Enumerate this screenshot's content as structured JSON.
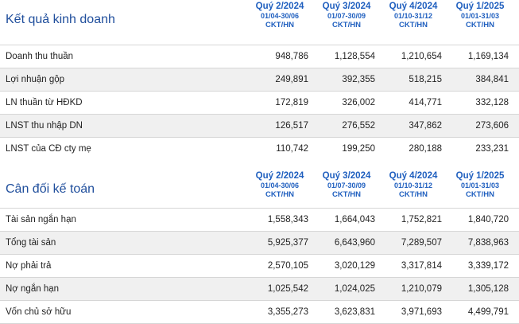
{
  "income": {
    "title": "Kết quả kinh doanh",
    "quarters": [
      {
        "label": "Quý 2/2024",
        "range": "01/04-30/06",
        "unit": "CKT/HN"
      },
      {
        "label": "Quý 3/2024",
        "range": "01/07-30/09",
        "unit": "CKT/HN"
      },
      {
        "label": "Quý 4/2024",
        "range": "01/10-31/12",
        "unit": "CKT/HN"
      },
      {
        "label": "Quý 1/2025",
        "range": "01/01-31/03",
        "unit": "CKT/HN"
      }
    ],
    "rows": [
      {
        "label": "Doanh thu thuần",
        "values": [
          "948,786",
          "1,128,554",
          "1,210,654",
          "1,169,134"
        ]
      },
      {
        "label": "Lợi nhuận gộp",
        "values": [
          "249,891",
          "392,355",
          "518,215",
          "384,841"
        ]
      },
      {
        "label": "LN thuần từ HĐKD",
        "values": [
          "172,819",
          "326,002",
          "414,771",
          "332,128"
        ]
      },
      {
        "label": "LNST thu nhập DN",
        "values": [
          "126,517",
          "276,552",
          "347,862",
          "273,606"
        ]
      },
      {
        "label": "LNST của CĐ cty mẹ",
        "values": [
          "110,742",
          "199,250",
          "280,188",
          "233,231"
        ]
      }
    ]
  },
  "balance": {
    "title": "Cân đối kế toán",
    "quarters": [
      {
        "label": "Quý 2/2024",
        "range": "01/04-30/06",
        "unit": "CKT/HN"
      },
      {
        "label": "Quý 3/2024",
        "range": "01/07-30/09",
        "unit": "CKT/HN"
      },
      {
        "label": "Quý 4/2024",
        "range": "01/10-31/12",
        "unit": "CKT/HN"
      },
      {
        "label": "Quý 1/2025",
        "range": "01/01-31/03",
        "unit": "CKT/HN"
      }
    ],
    "rows": [
      {
        "label": "Tài sản ngắn hạn",
        "values": [
          "1,558,343",
          "1,664,043",
          "1,752,821",
          "1,840,720"
        ]
      },
      {
        "label": "Tổng tài sản",
        "values": [
          "5,925,377",
          "6,643,960",
          "7,289,507",
          "7,838,963"
        ]
      },
      {
        "label": "Nợ phải trả",
        "values": [
          "2,570,105",
          "3,020,129",
          "3,317,814",
          "3,339,172"
        ]
      },
      {
        "label": "Nợ ngắn hạn",
        "values": [
          "1,025,542",
          "1,024,025",
          "1,210,079",
          "1,305,128"
        ]
      },
      {
        "label": "Vốn chủ sở hữu",
        "values": [
          "3,355,273",
          "3,623,831",
          "3,971,693",
          "4,499,791"
        ]
      }
    ]
  }
}
